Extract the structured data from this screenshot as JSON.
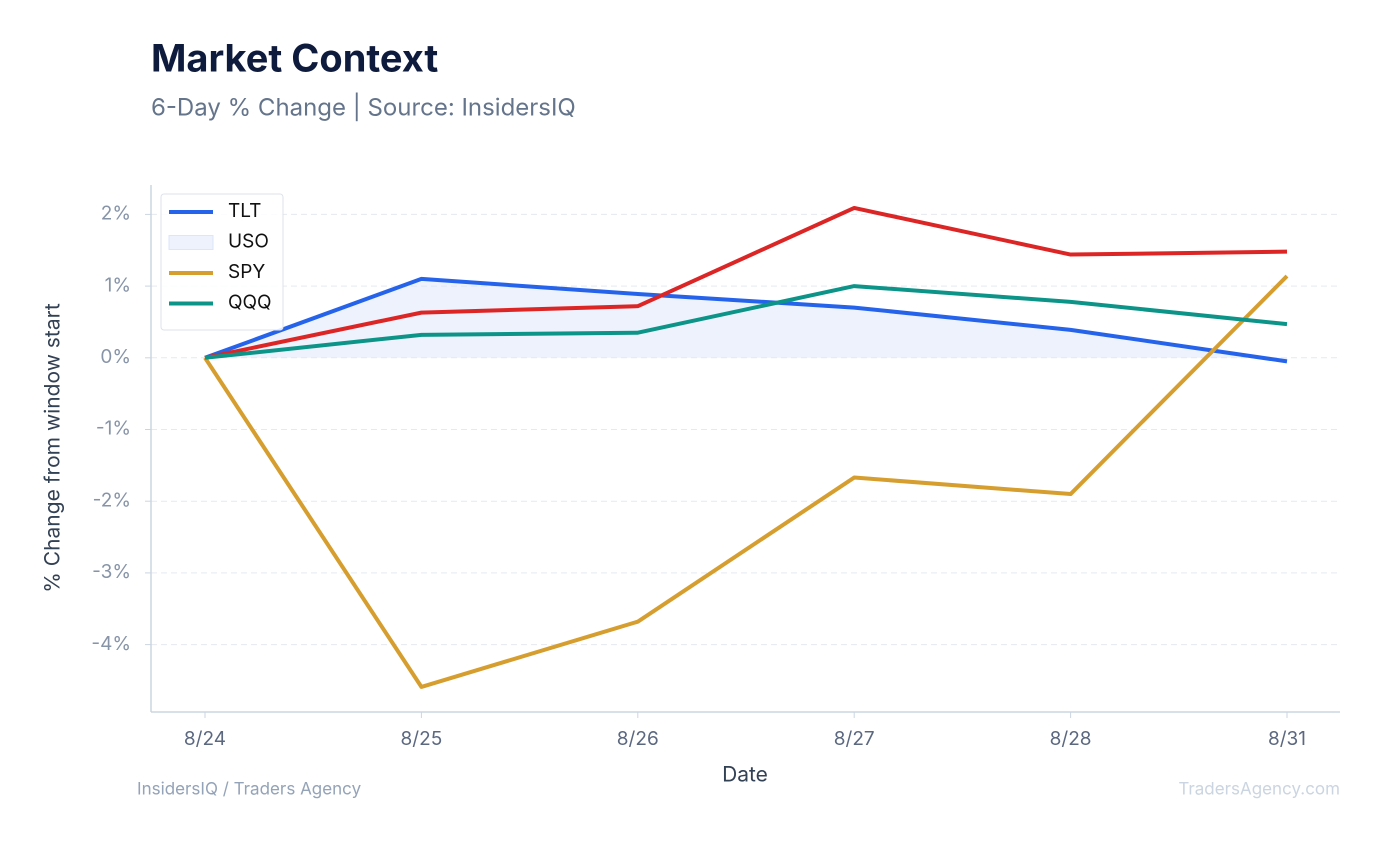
{
  "chart_data": {
    "type": "line",
    "title": "Market Context",
    "subtitle": "6-Day % Change | Source: InsidersIQ",
    "x_label": "Date",
    "y_label": "% Change from window start",
    "footer_left": "InsidersIQ / Traders Agency",
    "footer_right": "TradersAgency.com",
    "categories": [
      "8/24",
      "8/25",
      "8/26",
      "8/27",
      "8/28",
      "8/31"
    ],
    "ylim": [
      -4.94,
      2.41
    ],
    "yticks": [
      {
        "value": -4,
        "label": "-4%"
      },
      {
        "value": -3,
        "label": "-3%"
      },
      {
        "value": -2,
        "label": "-2%"
      },
      {
        "value": -1,
        "label": "-1%"
      },
      {
        "value": 0,
        "label": "0%"
      },
      {
        "value": 1,
        "label": "1%"
      },
      {
        "value": 2,
        "label": "2%"
      }
    ],
    "grid": true,
    "legend": "upper left",
    "series": [
      {
        "name": "TLT",
        "color": "#2563eb",
        "kind": "line",
        "values": [
          0,
          1.1,
          0.89,
          0.7,
          0.39,
          -0.05
        ]
      },
      {
        "name": "USO",
        "color": "#dbe6fb",
        "kind": "area",
        "values": [
          0,
          1.1,
          0.89,
          0.7,
          0.39,
          -0.05
        ]
      },
      {
        "color": "#dc2626",
        "kind": "line",
        "values": [
          0,
          0.63,
          0.72,
          2.09,
          1.44,
          1.48
        ]
      },
      {
        "name": "SPY",
        "color": "#d69e2e",
        "kind": "line",
        "values": [
          0,
          -4.59,
          -3.68,
          -1.67,
          -1.9,
          1.14
        ]
      },
      {
        "name": "QQQ",
        "color": "#0d9488",
        "kind": "line",
        "values": [
          0,
          0.32,
          0.35,
          1.0,
          0.78,
          0.47
        ]
      }
    ]
  }
}
